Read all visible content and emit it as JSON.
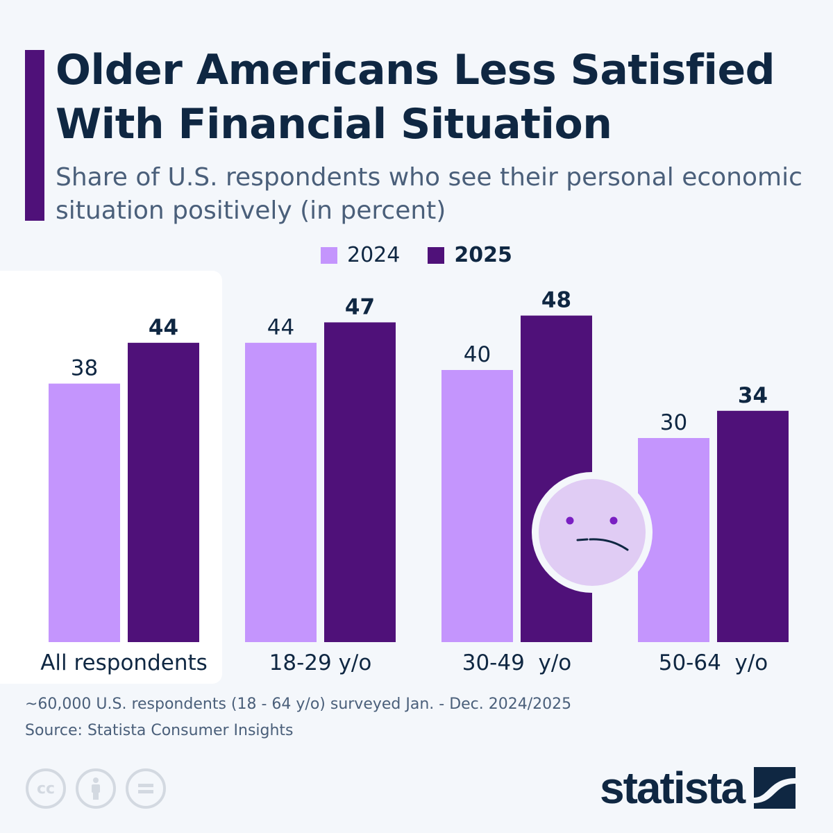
{
  "title": "Older Americans Less Satisfied With Financial Situation",
  "subtitle": "Share of U.S. respondents who see their personal economic situation positively (in percent)",
  "colors": {
    "s2024": "#c495fd",
    "s2025": "#4f1179",
    "text": "#0f2742",
    "face": "#e0ccf4",
    "eyes": "#7a1fc2"
  },
  "chart_data": {
    "type": "bar",
    "categories": [
      "All respondents",
      "18-29 y/o",
      "30-49  y/o",
      "50-64  y/o"
    ],
    "series": [
      {
        "name": "2024",
        "values": [
          38,
          44,
          40,
          30
        ]
      },
      {
        "name": "2025",
        "values": [
          44,
          47,
          48,
          34
        ]
      }
    ],
    "ylim": [
      0,
      50
    ],
    "grid": false,
    "legend": "top-center",
    "highlight_category": "All respondents"
  },
  "footer": {
    "note": "~60,000 U.S. respondents (18 - 64 y/o) surveyed Jan. - Dec. 2024/2025",
    "source": "Source: Statista Consumer Insights",
    "brand": "statista",
    "license_icons": [
      "cc-icon",
      "attribution-icon",
      "no-derivatives-icon"
    ]
  }
}
